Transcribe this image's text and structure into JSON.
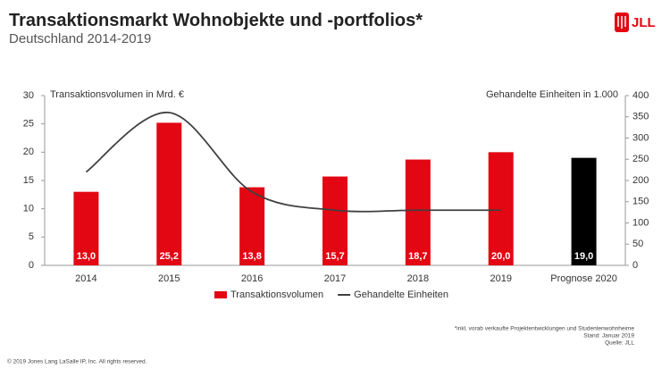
{
  "logo": "JLL",
  "footnotes": [
    "*inkl. vorab verkaufte Projektentwicklungen und Studentenwohnheime",
    "Stand: Januar 2019",
    "Quelle: JLL"
  ],
  "copyright": "© 2019 Jones Lang LaSalle IP, Inc. All rights reserved.",
  "chart_data": {
    "type": "bar",
    "title": "Transaktionsmarkt Wohnobjekte und -portfolios*",
    "subtitle": "Deutschland 2014-2019",
    "y_label": "Transaktionsvolumen in Mrd. €",
    "y2_label": "Gehandelte Einheiten in 1.000",
    "categories": [
      "2014",
      "2015",
      "2016",
      "2017",
      "2018",
      "2019",
      "Prognose 2020"
    ],
    "series": [
      {
        "name": "Transaktionsvolumen",
        "type": "bar",
        "color": "#e30613",
        "colors": [
          "#e30613",
          "#e30613",
          "#e30613",
          "#e30613",
          "#e30613",
          "#e30613",
          "#000000"
        ],
        "values": [
          13.0,
          25.2,
          13.8,
          15.7,
          18.7,
          20.0,
          19.0
        ],
        "value_labels": [
          "13,0",
          "25,2",
          "13,8",
          "15,7",
          "18,7",
          "20,0",
          "19,0"
        ]
      },
      {
        "name": "Gehandelte Einheiten",
        "type": "line",
        "axis": "y2",
        "color": "#404040",
        "values": [
          220,
          360,
          173,
          130,
          130,
          130,
          null
        ]
      }
    ],
    "ylim": [
      0,
      30
    ],
    "yticks": [
      0,
      5,
      10,
      15,
      20,
      25,
      30
    ],
    "y2lim": [
      0,
      400
    ],
    "y2ticks": [
      0,
      50,
      100,
      150,
      200,
      250,
      300,
      350,
      400
    ],
    "grid": false
  }
}
